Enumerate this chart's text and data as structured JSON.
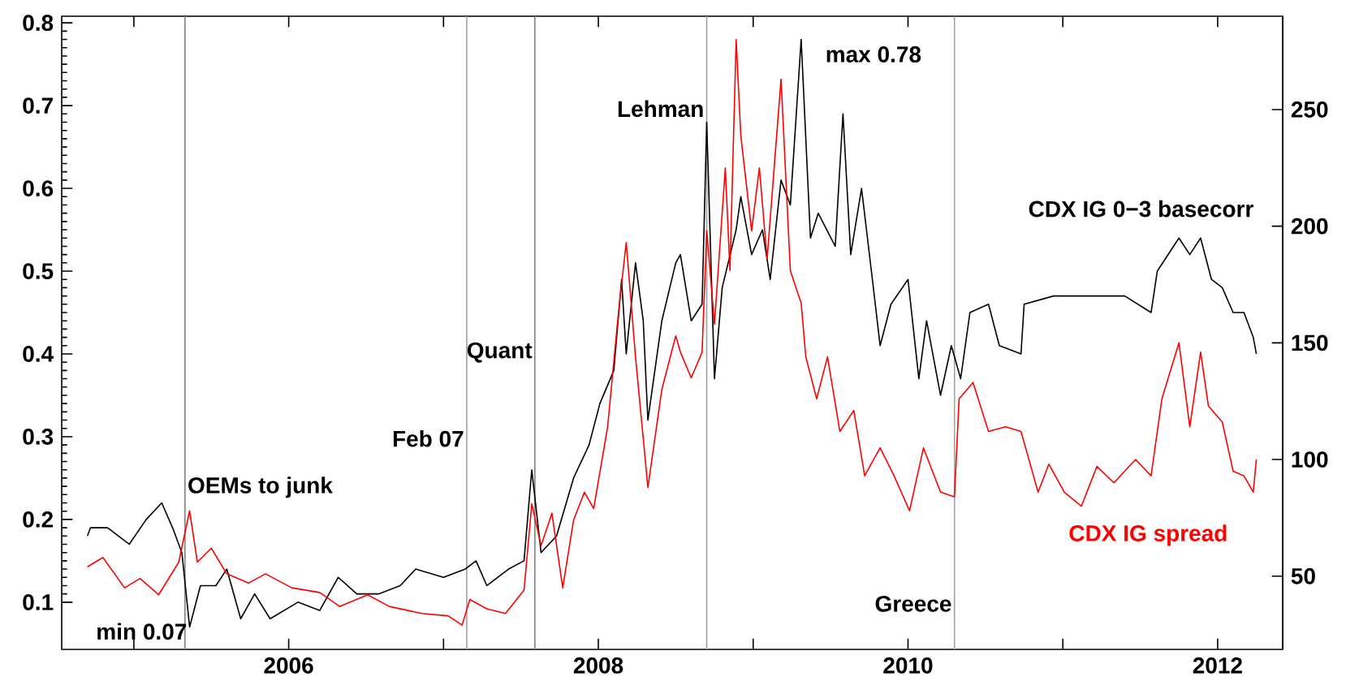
{
  "chart_data": {
    "type": "line",
    "xlim": [
      2004.534,
      2012.42
    ],
    "xticks": [
      {
        "value": 2005,
        "label": null
      },
      2006,
      {
        "value": 2007,
        "label": null
      },
      2008,
      {
        "value": 2009,
        "label": null
      },
      2010,
      {
        "value": 2011,
        "label": null
      },
      2012
    ],
    "ylim": [
      0.043,
      0.808
    ],
    "yticks": [
      0.1,
      0.2,
      0.3,
      0.4,
      0.5,
      0.6,
      0.7,
      0.8
    ],
    "y2lim": [
      18.6,
      290
    ],
    "y2ticks": [
      50,
      100,
      150,
      200,
      250
    ],
    "marker": "none",
    "line_style": "solid",
    "series": [
      {
        "name": "CDX IG 0−3 basecorr",
        "color": "#000000",
        "x": [
          2004.7,
          2004.72,
          2004.83,
          2004.97,
          2005.08,
          2005.18,
          2005.25,
          2005.31,
          2005.36,
          2005.43,
          2005.53,
          2005.6,
          2005.69,
          2005.78,
          2005.88,
          2006.06,
          2006.2,
          2006.32,
          2006.44,
          2006.58,
          2006.72,
          2006.82,
          2007.0,
          2007.14,
          2007.21,
          2007.28,
          2007.42,
          2007.52,
          2007.57,
          2007.63,
          2007.73,
          2007.84,
          2007.94,
          2008.01,
          2008.1,
          2008.15,
          2008.18,
          2008.24,
          2008.29,
          2008.32,
          2008.41,
          2008.5,
          2008.53,
          2008.6,
          2008.67,
          2008.7,
          2008.75,
          2008.8,
          2008.89,
          2008.92,
          2008.99,
          2009.06,
          2009.11,
          2009.18,
          2009.24,
          2009.31,
          2009.37,
          2009.42,
          2009.53,
          2009.58,
          2009.63,
          2009.7,
          2009.77,
          2009.82,
          2009.89,
          2010.0,
          2010.07,
          2010.12,
          2010.21,
          2010.28,
          2010.34,
          2010.4,
          2010.52,
          2010.59,
          2010.73,
          2010.75,
          2010.94,
          2011.12,
          2011.29,
          2011.4,
          2011.57,
          2011.61,
          2011.75,
          2011.82,
          2011.89,
          2011.96,
          2012.03,
          2012.1,
          2012.17,
          2012.23,
          2012.25
        ],
        "values": [
          0.18,
          0.19,
          0.19,
          0.17,
          0.2,
          0.22,
          0.19,
          0.16,
          0.07,
          0.12,
          0.12,
          0.14,
          0.08,
          0.11,
          0.08,
          0.1,
          0.09,
          0.13,
          0.11,
          0.11,
          0.12,
          0.14,
          0.13,
          0.14,
          0.15,
          0.12,
          0.14,
          0.15,
          0.26,
          0.16,
          0.18,
          0.25,
          0.29,
          0.34,
          0.38,
          0.49,
          0.4,
          0.51,
          0.44,
          0.32,
          0.44,
          0.51,
          0.52,
          0.44,
          0.46,
          0.68,
          0.37,
          0.48,
          0.55,
          0.59,
          0.52,
          0.55,
          0.49,
          0.61,
          0.58,
          0.78,
          0.54,
          0.57,
          0.53,
          0.69,
          0.52,
          0.6,
          0.49,
          0.41,
          0.46,
          0.49,
          0.37,
          0.44,
          0.35,
          0.41,
          0.37,
          0.45,
          0.46,
          0.41,
          0.4,
          0.46,
          0.47,
          0.47,
          0.47,
          0.47,
          0.45,
          0.5,
          0.54,
          0.52,
          0.54,
          0.49,
          0.48,
          0.45,
          0.45,
          0.42,
          0.4
        ]
      },
      {
        "name": "CDX IG spread",
        "color": "#ff0000",
        "axis": "y2",
        "x": [
          2004.7,
          2004.8,
          2004.94,
          2005.04,
          2005.16,
          2005.29,
          2005.36,
          2005.41,
          2005.5,
          2005.6,
          2005.74,
          2005.85,
          2006.02,
          2006.2,
          2006.33,
          2006.51,
          2006.65,
          2006.86,
          2007.03,
          2007.12,
          2007.17,
          2007.28,
          2007.4,
          2007.52,
          2007.57,
          2007.63,
          2007.7,
          2007.77,
          2007.84,
          2007.91,
          2007.97,
          2008.06,
          2008.13,
          2008.18,
          2008.24,
          2008.32,
          2008.41,
          2008.5,
          2008.53,
          2008.6,
          2008.67,
          2008.7,
          2008.75,
          2008.82,
          2008.85,
          2008.89,
          2008.92,
          2008.99,
          2009.04,
          2009.09,
          2009.18,
          2009.24,
          2009.31,
          2009.34,
          2009.41,
          2009.48,
          2009.56,
          2009.65,
          2009.72,
          2009.82,
          2009.91,
          2010.01,
          2010.1,
          2010.21,
          2010.3,
          2010.33,
          2010.42,
          2010.52,
          2010.63,
          2010.73,
          2010.84,
          2010.91,
          2011.01,
          2011.12,
          2011.22,
          2011.33,
          2011.47,
          2011.57,
          2011.64,
          2011.75,
          2011.82,
          2011.89,
          2011.94,
          2012.03,
          2012.1,
          2012.17,
          2012.23,
          2012.25
        ],
        "values": [
          54,
          58,
          45,
          49,
          42,
          56,
          78,
          56,
          62,
          51,
          47,
          51,
          45,
          43,
          37,
          42,
          37,
          34,
          33,
          29,
          40,
          36,
          34,
          44,
          81,
          63,
          77,
          45,
          74,
          86,
          79,
          114,
          163,
          193,
          144,
          88,
          130,
          153,
          146,
          135,
          146,
          198,
          158,
          225,
          181,
          280,
          239,
          198,
          225,
          186,
          263,
          181,
          167,
          144,
          126,
          144,
          112,
          121,
          93,
          105,
          93,
          78,
          105,
          86,
          84,
          126,
          133,
          112,
          114,
          112,
          86,
          98,
          86,
          80,
          97,
          90,
          100,
          93,
          126,
          150,
          114,
          146,
          123,
          116,
          95,
          93,
          86,
          100
        ]
      }
    ],
    "ref_lines": [
      {
        "axis": "x",
        "value": 2005.33,
        "label": "OEMs to junk",
        "color": "#808080"
      },
      {
        "axis": "x",
        "value": 2007.15,
        "label": "Feb 07",
        "color": "#a0a0a0"
      },
      {
        "axis": "x",
        "value": 2007.59,
        "label": "Quant",
        "color": "#808080"
      },
      {
        "axis": "x",
        "value": 2008.7,
        "label": "Lehman",
        "color": "#a0a0a0"
      },
      {
        "axis": "x",
        "value": 2010.3,
        "label": "Greece",
        "color": "#a0a0a0"
      }
    ],
    "annotations": [
      {
        "text": "min 0.07",
        "x": 2005.36,
        "y": 0.07
      },
      {
        "text": "max 0.78",
        "x": 2009.31,
        "y": 0.78
      }
    ]
  }
}
